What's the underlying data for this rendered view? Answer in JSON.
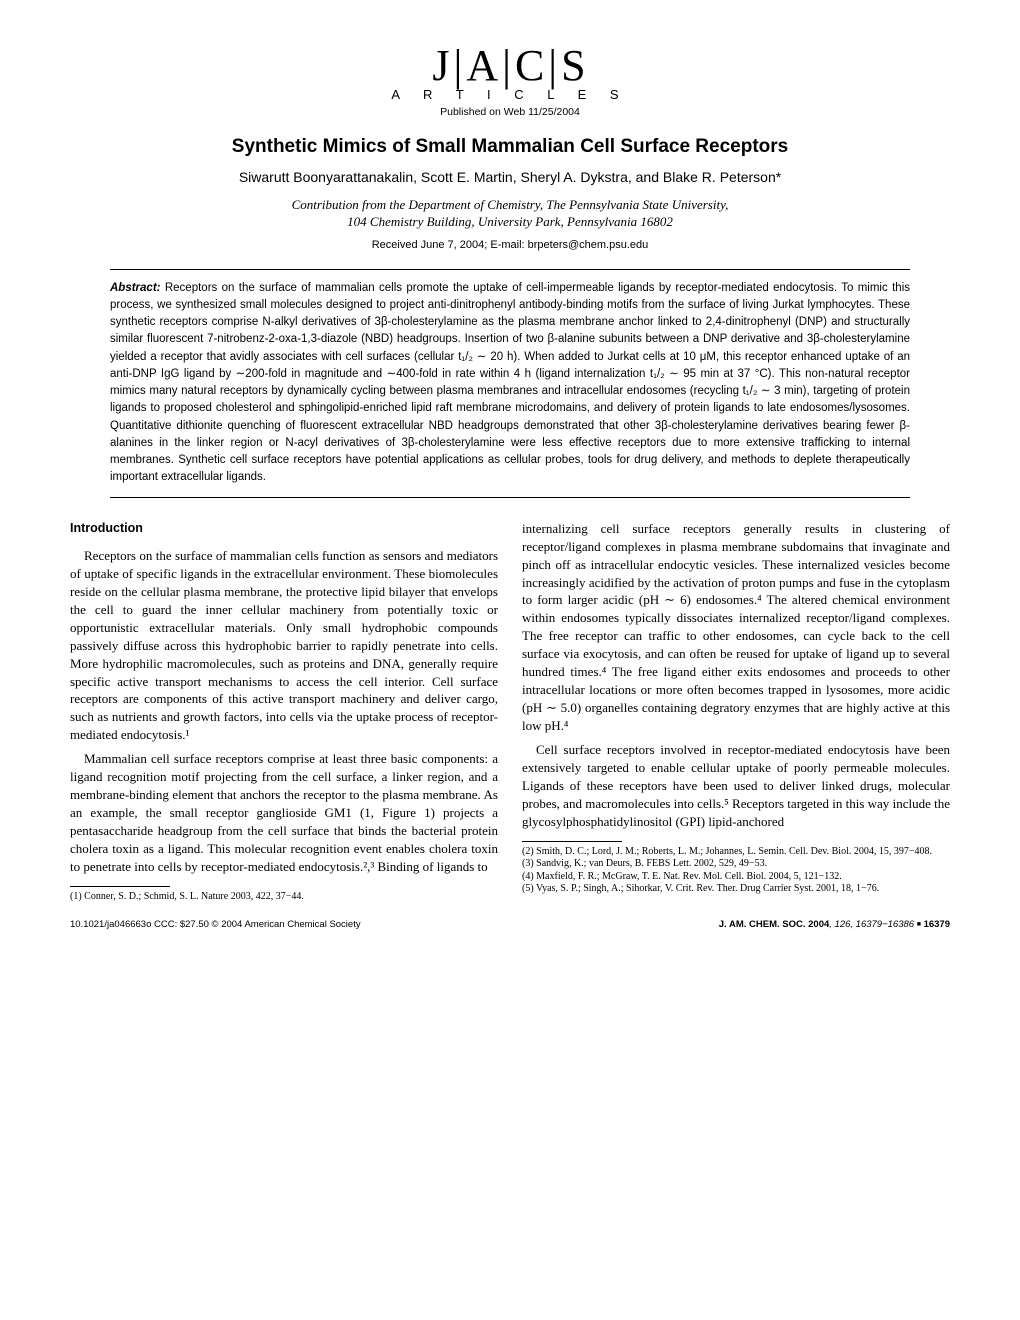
{
  "logo": {
    "letters": "J|A|C|S",
    "sub": "A R T I C L E S",
    "pub": "Published on Web 11/25/2004"
  },
  "title": "Synthetic Mimics of Small Mammalian Cell Surface Receptors",
  "authors": "Siwarutt Boonyarattanakalin, Scott E. Martin, Sheryl A. Dykstra, and Blake R. Peterson*",
  "affiliation_l1": "Contribution from the Department of Chemistry, The Pennsylvania State University,",
  "affiliation_l2": "104 Chemistry Building, University Park, Pennsylvania 16802",
  "received": "Received June 7, 2004;  E-mail: brpeters@chem.psu.edu",
  "abstract_label": "Abstract:",
  "abstract": "Receptors on the surface of mammalian cells promote the uptake of cell-impermeable ligands by receptor-mediated endocytosis. To mimic this process, we synthesized small molecules designed to project anti-dinitrophenyl antibody-binding motifs from the surface of living Jurkat lymphocytes. These synthetic receptors comprise N-alkyl derivatives of 3β-cholesterylamine as the plasma membrane anchor linked to 2,4-dinitrophenyl (DNP) and structurally similar fluorescent 7-nitrobenz-2-oxa-1,3-diazole (NBD) headgroups. Insertion of two β-alanine subunits between a DNP derivative and 3β-cholesterylamine yielded a receptor that avidly associates with cell surfaces (cellular t₁/₂ ∼ 20 h). When added to Jurkat cells at 10 μM, this receptor enhanced uptake of an anti-DNP IgG ligand by ∼200-fold in magnitude and ∼400-fold in rate within 4 h (ligand internalization t₁/₂ ∼ 95 min at 37 °C). This non-natural receptor mimics many natural receptors by dynamically cycling between plasma membranes and intracellular endosomes (recycling t₁/₂ ∼ 3 min), targeting of protein ligands to proposed cholesterol and sphingolipid-enriched lipid raft membrane microdomains, and delivery of protein ligands to late endosomes/lysosomes. Quantitative dithionite quenching of fluorescent extracellular NBD headgroups demonstrated that other 3β-cholesterylamine derivatives bearing fewer β-alanines in the linker region or N-acyl derivatives of 3β-cholesterylamine were less effective receptors due to more extensive trafficking to internal membranes. Synthetic cell surface receptors have potential applications as cellular probes, tools for drug delivery, and methods to deplete therapeutically important extracellular ligands.",
  "intro_head": "Introduction",
  "left_p1": "Receptors on the surface of mammalian cells function as sensors and mediators of uptake of specific ligands in the extracellular environment. These biomolecules reside on the cellular plasma membrane, the protective lipid bilayer that envelops the cell to guard the inner cellular machinery from potentially toxic or opportunistic extracellular materials. Only small hydrophobic compounds passively diffuse across this hydrophobic barrier to rapidly penetrate into cells. More hydrophilic macromolecules, such as proteins and DNA, generally require specific active transport mechanisms to access the cell interior. Cell surface receptors are components of this active transport machinery and deliver cargo, such as nutrients and growth factors, into cells via the uptake process of receptor-mediated endocytosis.¹",
  "left_p2": "Mammalian cell surface receptors comprise at least three basic components: a ligand recognition motif projecting from the cell surface, a linker region, and a membrane-binding element that anchors the receptor to the plasma membrane. As an example, the small receptor ganglioside GM1 (1, Figure 1) projects a pentasaccharide headgroup from the cell surface that binds the bacterial protein cholera toxin as a ligand. This molecular recognition event enables cholera toxin to penetrate into cells by receptor-mediated endocytosis.²,³ Binding of ligands to",
  "right_p1": "internalizing cell surface receptors generally results in clustering of receptor/ligand complexes in plasma membrane subdomains that invaginate and pinch off as intracellular endocytic vesicles. These internalized vesicles become increasingly acidified by the activation of proton pumps and fuse in the cytoplasm to form larger acidic (pH ∼ 6) endosomes.⁴ The altered chemical environment within endosomes typically dissociates internalized receptor/ligand complexes. The free receptor can traffic to other endosomes, can cycle back to the cell surface via exocytosis, and can often be reused for uptake of ligand up to several hundred times.⁴ The free ligand either exits endosomes and proceeds to other intracellular locations or more often becomes trapped in lysosomes, more acidic (pH ∼ 5.0) organelles containing degratory enzymes that are highly active at this low pH.⁴",
  "right_p2": "Cell surface receptors involved in receptor-mediated endocytosis have been extensively targeted to enable cellular uptake of poorly permeable molecules. Ligands of these receptors have been used to deliver linked drugs, molecular probes, and macromolecules into cells.⁵ Receptors targeted in this way include the glycosylphosphatidylinositol (GPI) lipid-anchored",
  "fn_left_1": "(1) Conner, S. D.; Schmid, S. L. Nature 2003, 422, 37−44.",
  "fn_right_2": "(2) Smith, D. C.; Lord, J. M.; Roberts, L. M.; Johannes, L. Semin. Cell. Dev. Biol. 2004, 15, 397−408.",
  "fn_right_3": "(3) Sandvig, K.; van Deurs, B. FEBS Lett. 2002, 529, 49−53.",
  "fn_right_4": "(4) Maxfield, F. R.; McGraw, T. E. Nat. Rev. Mol. Cell. Biol. 2004, 5, 121−132.",
  "fn_right_5": "(5) Vyas, S. P.; Singh, A.; Sihorkar, V. Crit. Rev. Ther. Drug Carrier Syst. 2001, 18, 1−76.",
  "footer_left": "10.1021/ja046663o CCC: $27.50 © 2004 American Chemical Society",
  "footer_right_journal": "J. AM. CHEM. SOC. 2004",
  "footer_right_vol": ", 126, 16379−16386",
  "footer_right_page": "16379"
}
